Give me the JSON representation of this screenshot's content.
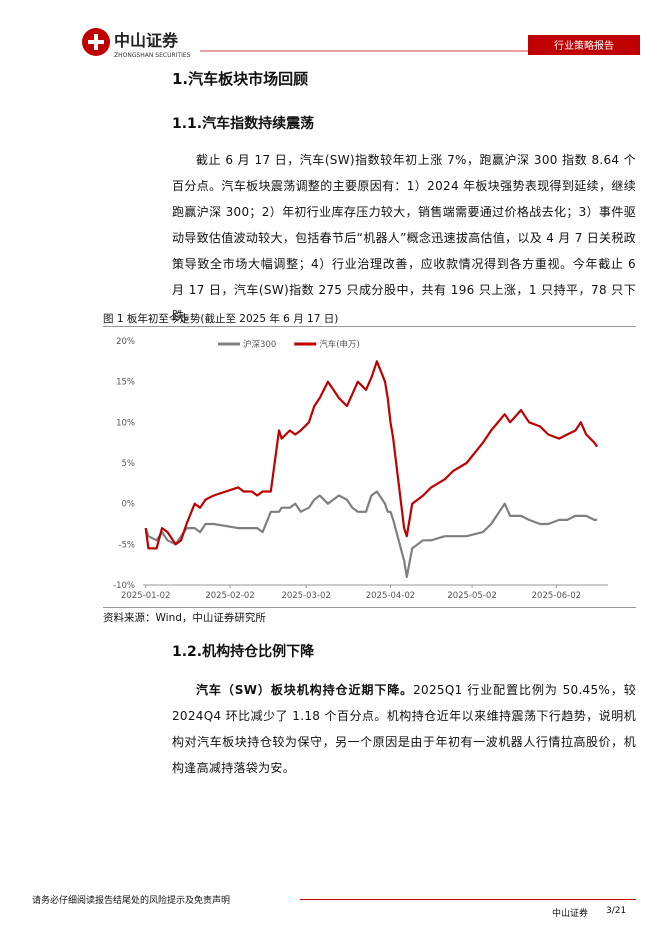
{
  "header": {
    "brand": "中山证券",
    "brand_en": "ZHONGSHAN SECURITIES",
    "tag": "行业策略报告"
  },
  "heading1": "1.汽车板块市场回顾",
  "heading1_1": "1.1.汽车指数持续震荡",
  "paragraph1": "截止 6 月 17 日，汽车(SW)指数较年初上涨 7%，跑赢沪深 300 指数 8.64 个百分点。汽车板块震荡调整的主要原因有：1）2024 年板块强势表现得到延续，继续跑赢沪深 300；2）年初行业库存压力较大，销售端需要通过价格战去化；3）事件驱动导致估值波动较大，包括春节后“机器人”概念迅速拔高估值，以及 4 月 7 日关税政策导致全市场大幅调整；4）行业治理改善，应收款情况得到各方重视。今年截止 6 月 17 日，汽车(SW)指数 275 只成分股中，共有 196 只上涨，1 只持平，78 只下跌。",
  "figure_caption": "图 1 板年初至今走势(截止至 2025 年 6 月 17 日)",
  "chart_data": {
    "type": "line",
    "legend": "top",
    "grid": false,
    "x": [
      "2025-01-02",
      "2025-01-03",
      "2025-01-06",
      "2025-01-08",
      "2025-01-10",
      "2025-01-13",
      "2025-01-15",
      "2025-01-17",
      "2025-01-20",
      "2025-01-22",
      "2025-01-24",
      "2025-01-27",
      "2025-02-05",
      "2025-02-07",
      "2025-02-10",
      "2025-02-12",
      "2025-02-14",
      "2025-02-17",
      "2025-02-20",
      "2025-02-21",
      "2025-02-24",
      "2025-02-26",
      "2025-02-28",
      "2025-03-03",
      "2025-03-05",
      "2025-03-07",
      "2025-03-10",
      "2025-03-12",
      "2025-03-14",
      "2025-03-17",
      "2025-03-19",
      "2025-03-21",
      "2025-03-24",
      "2025-03-26",
      "2025-03-28",
      "2025-03-31",
      "2025-04-01",
      "2025-04-02",
      "2025-04-03",
      "2025-04-07",
      "2025-04-08",
      "2025-04-10",
      "2025-04-14",
      "2025-04-17",
      "2025-04-22",
      "2025-04-25",
      "2025-04-30",
      "2025-05-06",
      "2025-05-09",
      "2025-05-14",
      "2025-05-16",
      "2025-05-20",
      "2025-05-23",
      "2025-05-27",
      "2025-05-30",
      "2025-06-03",
      "2025-06-06",
      "2025-06-09",
      "2025-06-11",
      "2025-06-13",
      "2025-06-16",
      "2025-06-17"
    ],
    "xlim": [
      "2025-01-01",
      "2025-06-21"
    ],
    "xticks": [
      "2025-01-02",
      "2025-02-02",
      "2025-03-02",
      "2025-04-02",
      "2025-05-02",
      "2025-06-02"
    ],
    "ylim": [
      -10,
      20
    ],
    "yticks": [
      {
        "value": -10,
        "label": "-10%"
      },
      {
        "value": -5,
        "label": "-5%"
      },
      {
        "value": 0,
        "label": "0%"
      },
      {
        "value": 5,
        "label": "5%"
      },
      {
        "value": 10,
        "label": "10%"
      },
      {
        "value": 15,
        "label": "15%"
      },
      {
        "value": 20,
        "label": "20%"
      }
    ],
    "series": [
      {
        "name": "沪深300",
        "color": "#7f7f7f",
        "values": [
          -3,
          -4,
          -4.5,
          -3.5,
          -4.5,
          -5,
          -4,
          -3,
          -3,
          -3.5,
          -2.5,
          -2.5,
          -3,
          -3,
          -3,
          -3,
          -3.5,
          -1,
          -1,
          -0.5,
          -0.5,
          0,
          -1,
          -0.5,
          0.5,
          1,
          0,
          0.5,
          1,
          0.5,
          -0.5,
          -1,
          -1,
          1,
          1.5,
          0,
          -1,
          -1,
          -2,
          -7,
          -9,
          -5.5,
          -4.5,
          -4.5,
          -4,
          -4,
          -4,
          -3.5,
          -2.5,
          0,
          -1.5,
          -1.5,
          -2,
          -2.5,
          -2.5,
          -2,
          -2,
          -1.5,
          -1.5,
          -1.5,
          -2,
          -2
        ]
      },
      {
        "name": "汽车(申万)",
        "color": "#c00000",
        "values": [
          -3,
          -5.5,
          -5.5,
          -3,
          -3.5,
          -5,
          -4.5,
          -2.5,
          0,
          -0.5,
          0.5,
          1,
          2,
          1.5,
          1.5,
          1,
          1.5,
          1.5,
          9,
          8,
          9,
          8.5,
          9,
          10,
          12,
          13,
          15,
          14,
          13,
          12,
          13.5,
          15,
          14,
          15.5,
          17.5,
          15,
          13,
          10,
          8,
          -3,
          -4,
          0,
          1,
          2,
          3,
          4,
          5,
          7.5,
          9,
          11,
          10,
          11.5,
          10,
          9.5,
          8.5,
          8,
          8.5,
          9,
          10,
          8.5,
          7.5,
          7
        ]
      }
    ]
  },
  "figure_source": "资料来源：Wind，中山证券研究所",
  "heading1_2": "1.2.机构持仓比例下降",
  "paragraph2": {
    "lead": "汽车（SW）板块机构持仓近期下降。",
    "text": "2025Q1 行业配置比例为 50.45%，较 2024Q4 环比减少了 1.18 个百分点。机构持仓近年以来维持震荡下行趋势，说明机构对汽车板块持仓较为保守，另一个原因是由于年初有一波机器人行情拉高股价，机构逢高减持落袋为安。"
  },
  "footer": {
    "disclaimer": "请务必仔细阅读报告结尾处的风险提示及免责声明",
    "brand": "中山证券",
    "page": "3/21"
  }
}
